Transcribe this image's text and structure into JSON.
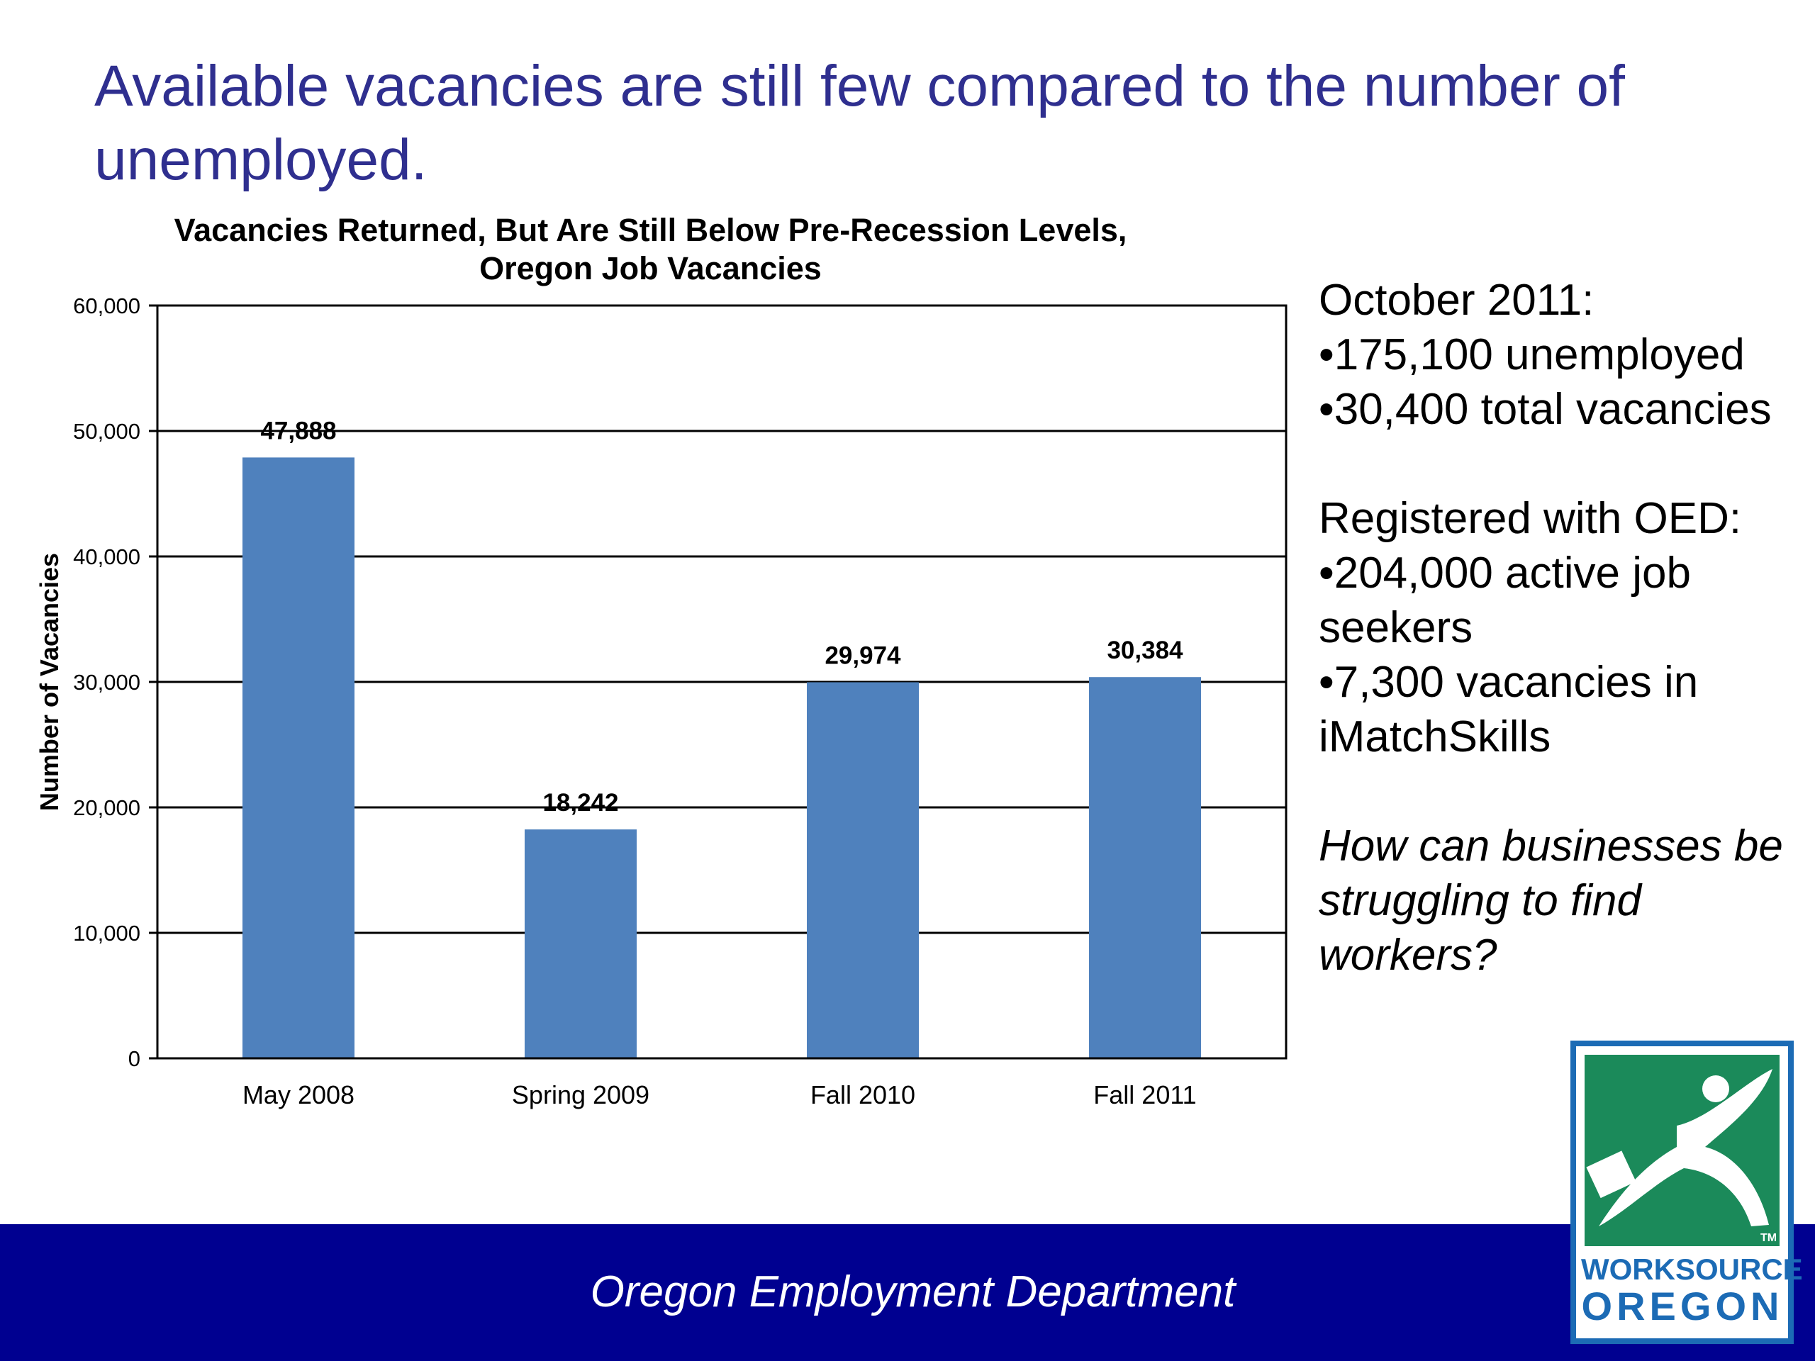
{
  "slide": {
    "title": "Available vacancies are still few compared to the number of unemployed."
  },
  "chart_data": {
    "type": "bar",
    "title_line1": "Vacancies Returned, But Are Still Below Pre-Recession Levels,",
    "title_line2": "Oregon Job Vacancies",
    "ylabel": "Number of Vacancies",
    "xlabel": "",
    "categories": [
      "May 2008",
      "Spring 2009",
      "Fall 2010",
      "Fall 2011"
    ],
    "values": [
      47888,
      18242,
      29974,
      30384
    ],
    "data_labels": [
      "47,888",
      "18,242",
      "29,974",
      "30,384"
    ],
    "ylim": [
      0,
      60000
    ],
    "yticks": [
      0,
      10000,
      20000,
      30000,
      40000,
      50000,
      60000
    ],
    "ytick_labels": [
      "0",
      "10,000",
      "20,000",
      "30,000",
      "40,000",
      "50,000",
      "60,000"
    ],
    "grid": true,
    "bar_color": "#4f81bd"
  },
  "sidebar": {
    "heading1": "October 2011:",
    "item1": "•175,100 unemployed",
    "item2": "•30,400 total vacancies",
    "heading2": "Registered with OED:",
    "item3": "•204,000 active job seekers",
    "item4": "•7,300 vacancies in iMatchSkills",
    "question": "How can businesses be struggling to find workers?"
  },
  "footer": {
    "text": "Oregon Employment Department",
    "bar_color": "#000090"
  },
  "logo": {
    "line1": "WORKSOURCE",
    "line2": "OREGON",
    "tm": "TM",
    "green": "#1b8a5a",
    "blue": "#1c6bb5"
  }
}
